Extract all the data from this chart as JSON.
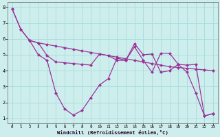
{
  "xlabel": "Windchill (Refroidissement éolien,°C)",
  "background_color": "#ceeeed",
  "grid_color": "#aadddd",
  "line_color": "#993399",
  "xlim": [
    -0.5,
    23.5
  ],
  "ylim": [
    0.7,
    8.3
  ],
  "xticks": [
    0,
    1,
    2,
    3,
    4,
    5,
    6,
    7,
    8,
    9,
    10,
    11,
    12,
    13,
    14,
    15,
    16,
    17,
    18,
    19,
    20,
    21,
    22,
    23
  ],
  "yticks": [
    1,
    2,
    3,
    4,
    5,
    6,
    7,
    8
  ],
  "series1_x": [
    0,
    1,
    2,
    3,
    4,
    5,
    6,
    7,
    8,
    9,
    10,
    11,
    12,
    13,
    14,
    15,
    16,
    17,
    18,
    19,
    20,
    21,
    22,
    23
  ],
  "series1_y": [
    7.9,
    6.6,
    5.9,
    5.75,
    5.65,
    5.55,
    5.45,
    5.35,
    5.25,
    5.15,
    5.05,
    4.95,
    4.85,
    4.75,
    4.65,
    4.55,
    4.45,
    4.35,
    4.25,
    4.2,
    4.15,
    4.1,
    4.05,
    4.0
  ],
  "series2_x": [
    0,
    1,
    2,
    3,
    4,
    5,
    6,
    7,
    8,
    9,
    10,
    11,
    12,
    13,
    14,
    15,
    16,
    17,
    18,
    19,
    20,
    21,
    22,
    23
  ],
  "series2_y": [
    7.9,
    6.6,
    5.9,
    5.0,
    4.65,
    2.6,
    1.6,
    1.2,
    1.5,
    2.3,
    3.1,
    3.5,
    4.8,
    4.65,
    5.5,
    4.65,
    3.9,
    5.1,
    5.1,
    4.4,
    3.9,
    2.6,
    1.15,
    1.3
  ],
  "series3_x": [
    2,
    3,
    4,
    5,
    6,
    7,
    8,
    9,
    10,
    11,
    12,
    13,
    14,
    15,
    16,
    17,
    18,
    19,
    20,
    21,
    22,
    23
  ],
  "series3_y": [
    5.9,
    5.75,
    4.95,
    4.55,
    4.5,
    4.45,
    4.4,
    4.35,
    5.05,
    4.95,
    4.65,
    4.65,
    5.7,
    5.0,
    5.05,
    3.9,
    4.0,
    4.4,
    4.35,
    4.4,
    1.15,
    1.3
  ]
}
